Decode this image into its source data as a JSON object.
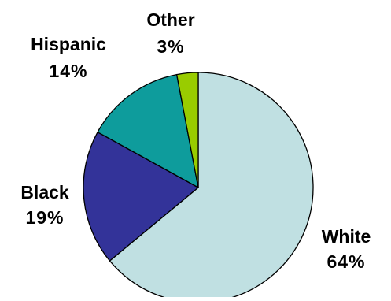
{
  "chart_data": {
    "type": "pie",
    "title": "",
    "start_angle_deg": 0,
    "direction": "clockwise",
    "slices": [
      {
        "label": "White",
        "value_label": "64%",
        "value": 64,
        "color": "#c0e0e2"
      },
      {
        "label": "Black",
        "value_label": "19%",
        "value": 19,
        "color": "#333399"
      },
      {
        "label": "Hispanic",
        "value_label": "14%",
        "value": 14,
        "color": "#0e9c9c"
      },
      {
        "label": "Other",
        "value_label": "3%",
        "value": 3,
        "color": "#99cc00"
      }
    ],
    "legend": "none",
    "labels_outside": true
  }
}
